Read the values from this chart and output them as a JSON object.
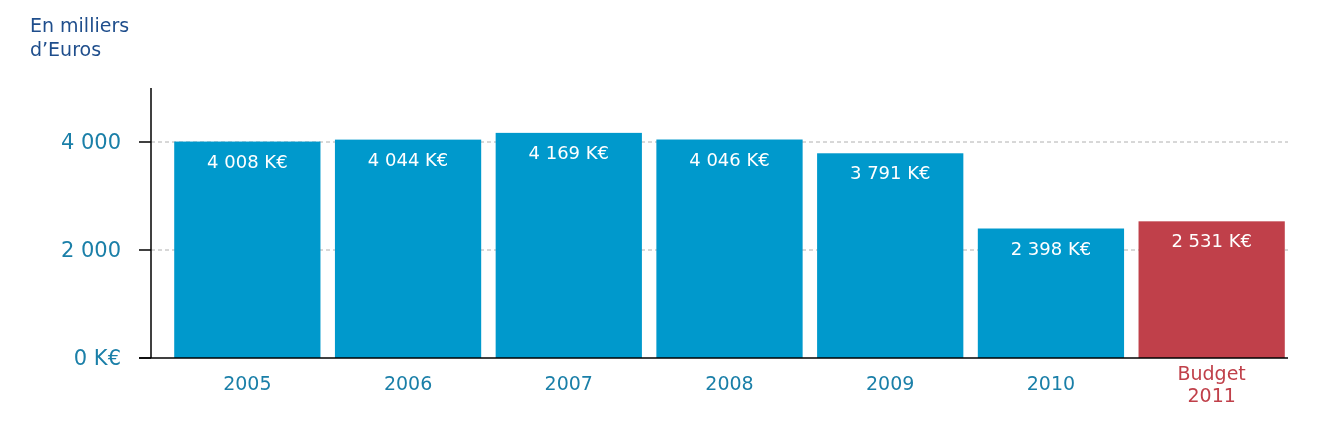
{
  "chart_data": {
    "type": "bar",
    "ylabel": "En milliers d’Euros",
    "categories": [
      "2005",
      "2006",
      "2007",
      "2008",
      "2009",
      "2010",
      "Budget 2011"
    ],
    "values": [
      4008,
      4044,
      4169,
      4046,
      3791,
      2398,
      2531
    ],
    "colors": [
      "#0099cc",
      "#0099cc",
      "#0099cc",
      "#0099cc",
      "#0099cc",
      "#0099cc",
      "#c0404a"
    ],
    "value_labels": [
      "4 008 K€",
      "4 044 K€",
      "4 169 K€",
      "4 046 K€",
      "3 791 K€",
      "2 398 K€",
      "2 531 K€"
    ],
    "ylim": [
      0,
      5000
    ],
    "yticks": [
      {
        "value": 0,
        "label": "0 K€"
      },
      {
        "value": 2000,
        "label": "2 000"
      },
      {
        "value": 4000,
        "label": "4 000"
      }
    ],
    "grid": "y"
  }
}
